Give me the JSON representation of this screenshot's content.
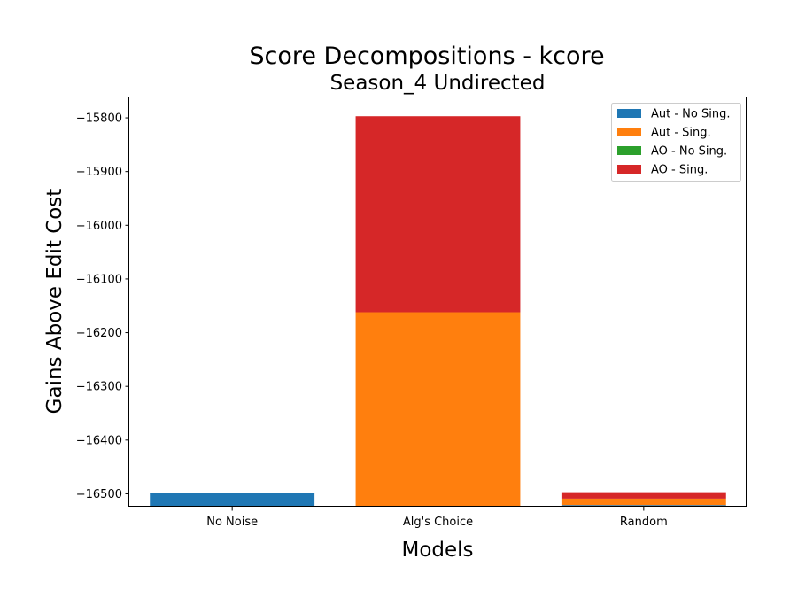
{
  "chart_data": {
    "type": "bar",
    "stacked": true,
    "title": "Score Decompositions - kcore",
    "subtitle": "Season_4 Undirected",
    "xlabel": "Models",
    "ylabel": "Gains Above Edit Cost",
    "categories": [
      "No Noise",
      "Alg's Choice",
      "Random"
    ],
    "ylim": [
      -16524,
      -15762
    ],
    "yticks": [
      -15800,
      -15900,
      -16000,
      -16100,
      -16200,
      -16300,
      -16400,
      -16500
    ],
    "yticklabels": [
      "−15800",
      "−15900",
      "−16000",
      "−16100",
      "−16200",
      "−16300",
      "−16400",
      "−16500"
    ],
    "baseline": -16524,
    "series": [
      {
        "name": "Aut - No Sing.",
        "color": "#1f77b4",
        "tops": [
          -16499,
          -16524,
          -16521
        ]
      },
      {
        "name": "Aut - Sing.",
        "color": "#ff7f0e",
        "tops": [
          -16499,
          -16162,
          -16509
        ]
      },
      {
        "name": "AO - No Sing.",
        "color": "#2ca02c",
        "tops": [
          -16499,
          -16162,
          -16509
        ]
      },
      {
        "name": "AO - Sing.",
        "color": "#d62728",
        "tops": [
          -16499,
          -15797,
          -16497
        ]
      }
    ],
    "grid": false,
    "legend_position": "upper right"
  }
}
